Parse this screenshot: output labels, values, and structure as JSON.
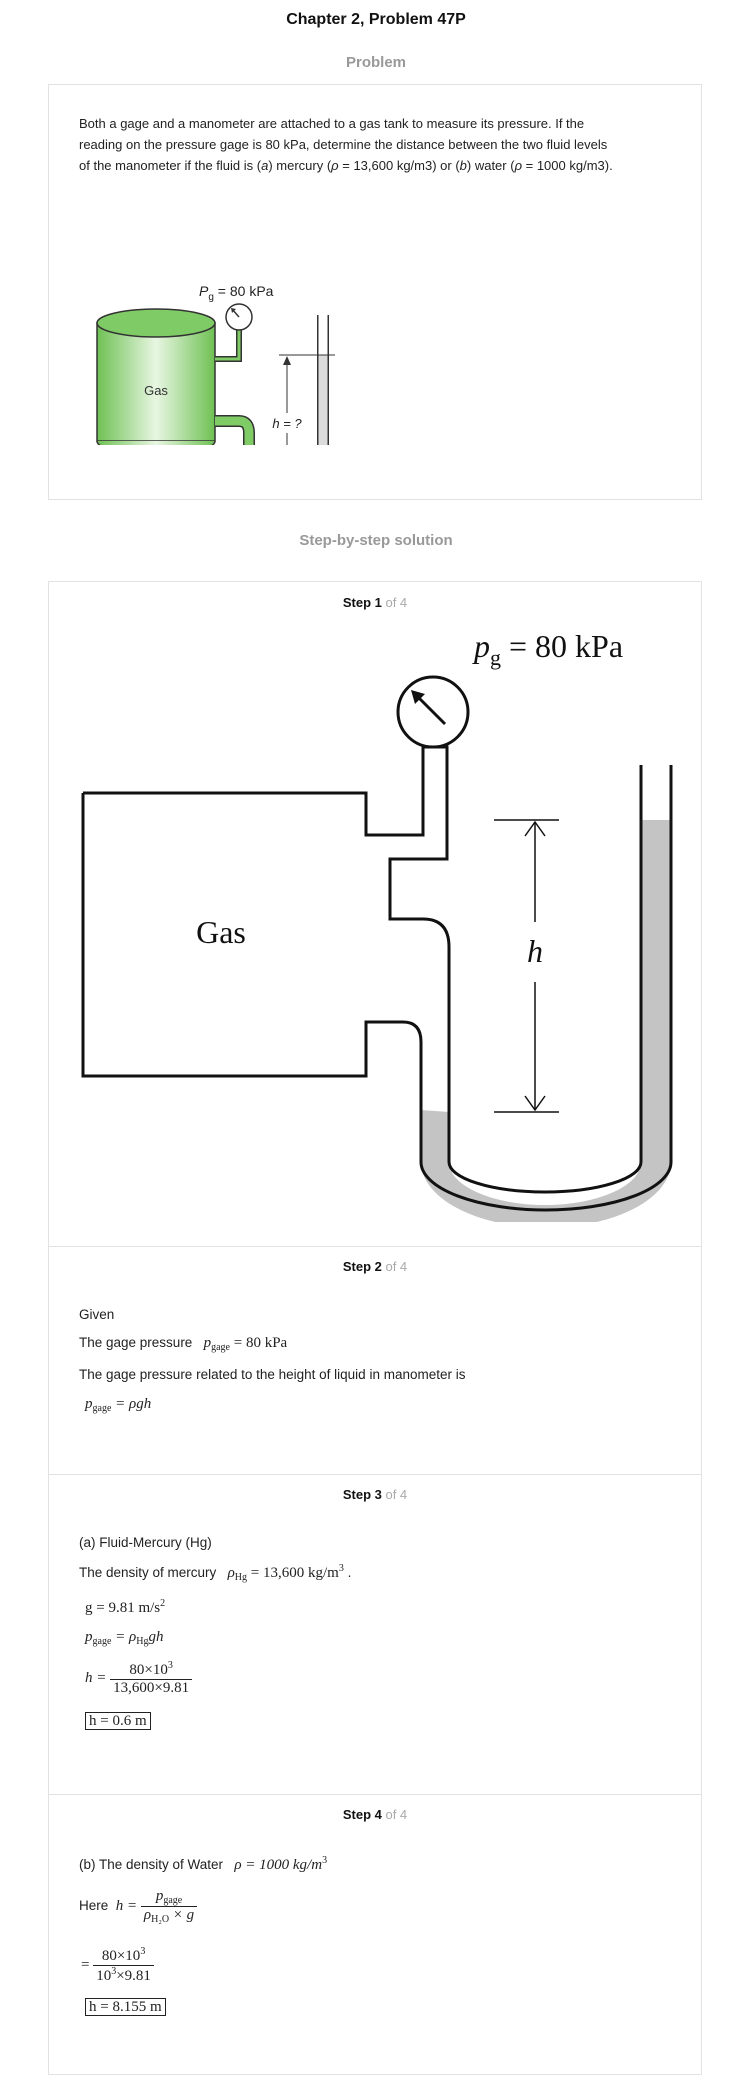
{
  "header": {
    "title": "Chapter 2, Problem 47P",
    "problem_heading": "Problem",
    "solution_heading": "Step-by-step solution"
  },
  "problem": {
    "text_line1": "Both a gage and a manometer are attached to a gas tank to measure its pressure. If the",
    "text_line2": "reading on the pressure gage is 80 kPa, determine the distance between the two fluid levels",
    "text_line3_pre": "of the manometer if the fluid is (",
    "text_a": "a",
    "text_line3_mid": ") mercury (",
    "rho1": "ρ",
    "text_line3_mid2": " = 13,600 kg/m3) or (",
    "text_b": "b",
    "text_line3_mid3": ") water (",
    "rho2": "ρ",
    "text_line3_end": " = 1000 kg/m3).",
    "figure": {
      "pressure_label_p": "P",
      "pressure_label_sub": "g",
      "pressure_label_val": " = 80 kPa",
      "gas_label": "Gas",
      "h_label": "h = ?"
    }
  },
  "steps": [
    {
      "label": "Step 1",
      "of": " of 4",
      "figure": {
        "pressure_p": "p",
        "pressure_sub": "g",
        "pressure_val": " = 80 kPa",
        "gas_label": "Gas",
        "h_label": "h"
      }
    },
    {
      "label": "Step 2",
      "of": " of 4",
      "given": "Given",
      "gage_text": "The gage pressure",
      "gage_eq_p": "p",
      "gage_eq_sub": "gage",
      "gage_eq_val": " = 80 kPa",
      "relation_text": "The gage pressure related to the height of liquid in manometer is",
      "relation_p": "p",
      "relation_sub": "gage",
      "relation_rhs": " = ρgh"
    },
    {
      "label": "Step 3",
      "of": " of 4",
      "part": "(a) Fluid-Mercury (Hg)",
      "density_text": "The density of mercury",
      "density_rho": "ρ",
      "density_sub": "Hg",
      "density_val": " = 13,600 kg/m",
      "density_sup": "3",
      "density_end": " .",
      "g_eq": "g = 9.81 m/s",
      "g_sup": "2",
      "eq2_p": "p",
      "eq2_sub": "gage",
      "eq2_mid": " = ρ",
      "eq2_sub2": "Hg",
      "eq2_end": "gh",
      "h_lhs": "h = ",
      "h_num": "80×10",
      "h_num_sup": "3",
      "h_den": "13,600×9.81",
      "answer": "h = 0.6 m"
    },
    {
      "label": "Step 4",
      "of": " of 4",
      "part_text": "(b) The density of Water",
      "rho_eq": "ρ = 1000 kg/m",
      "rho_sup": "3",
      "here": "Here",
      "h_lhs": "h = ",
      "frac_num_p": "p",
      "frac_num_sub": "gage",
      "frac_den_rho": "ρ",
      "frac_den_sub": "H₂O",
      "frac_den_end": " × g",
      "eq_lhs": "= ",
      "num2": "80×10",
      "num2_sup": "3",
      "den2": "10",
      "den2_sup": "3",
      "den2_end": "×9.81",
      "answer": "h = 8.155 m"
    }
  ]
}
